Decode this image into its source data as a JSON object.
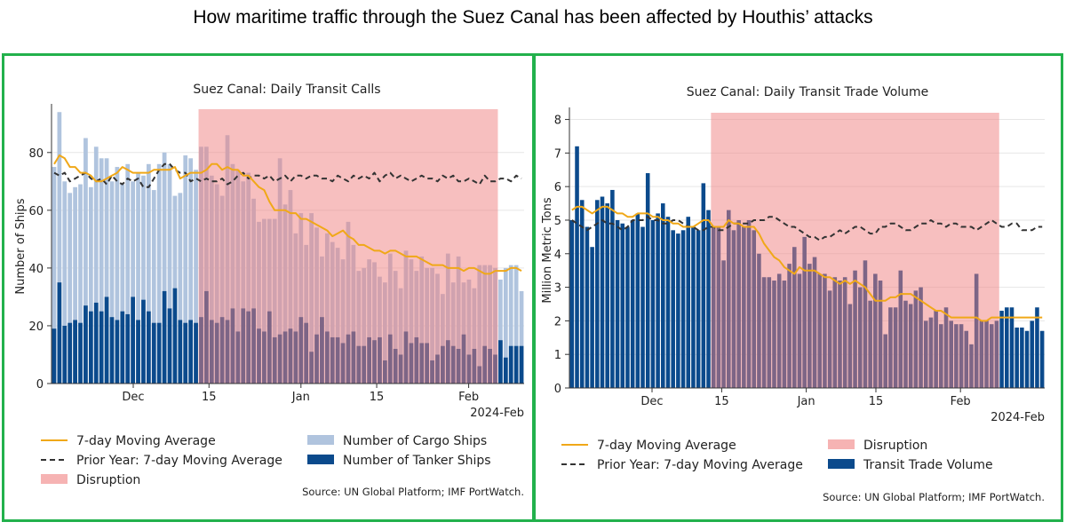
{
  "title": "How maritime traffic through the Suez Canal has been affected by Houthis’ attacks",
  "colors": {
    "cargo": "#b0c4de",
    "tanker": "#0b4a8c",
    "moving_avg": "#f0a818",
    "prior_year": "#333333",
    "disruption": "#f08080",
    "frame": "#22b14c"
  },
  "chart_data": [
    {
      "type": "bar",
      "title": "Suez Canal: Daily Transit Calls",
      "ylabel": "Number of Ships",
      "xlabel": "",
      "ylim": [
        0,
        95
      ],
      "yticks": [
        0,
        20,
        40,
        60,
        80
      ],
      "xticks": [
        {
          "label": "Dec",
          "day": 0
        },
        {
          "label": "15",
          "day": 14
        },
        {
          "label": "Jan",
          "day": 31
        },
        {
          "label": "15",
          "day": 45
        },
        {
          "label": "Feb",
          "day": 62
        }
      ],
      "x_suffix": "2024-Feb",
      "x_start": "2023-11-18",
      "disruption": {
        "start": "2023-12-16",
        "end": "2024-02-11"
      },
      "grid": true,
      "legend_position": "bottom",
      "legend": [
        {
          "label": "7-day Moving Average",
          "kind": "line",
          "color": "#f0a818"
        },
        {
          "label": "Number of Cargo Ships",
          "kind": "patch",
          "color": "#b0c4de"
        },
        {
          "label": "Prior Year: 7-day Moving Average",
          "kind": "dashed",
          "color": "#333333"
        },
        {
          "label": "Number of Tanker Ships",
          "kind": "patch",
          "color": "#0b4a8c"
        },
        {
          "label": "Disruption",
          "kind": "patch",
          "color": "#f08080"
        }
      ],
      "source": "Source: UN Global Platform; IMF PortWatch.",
      "series": [
        {
          "name": "Number of Cargo Ships",
          "values": [
            75,
            94,
            70,
            66,
            68,
            69,
            85,
            68,
            82,
            78,
            78,
            70,
            75,
            69,
            76,
            70,
            73,
            72,
            76,
            67,
            76,
            80,
            76,
            65,
            66,
            79,
            78,
            74,
            82,
            82,
            72,
            69,
            65,
            86,
            76,
            74,
            70,
            73,
            64,
            56,
            57,
            57,
            57,
            78,
            62,
            67,
            52,
            59,
            48,
            59,
            54,
            44,
            52,
            49,
            47,
            43,
            56,
            48,
            39,
            40,
            43,
            42,
            37,
            35,
            45,
            39,
            33,
            46,
            43,
            39,
            44,
            40,
            40,
            38,
            31,
            45,
            35,
            44,
            35,
            36,
            33,
            41,
            41,
            41,
            40,
            36,
            40,
            41,
            41,
            32
          ]
        },
        {
          "name": "Number of Tanker Ships",
          "values": [
            19,
            35,
            20,
            21,
            22,
            21,
            27,
            25,
            28,
            25,
            30,
            23,
            22,
            25,
            24,
            30,
            22,
            29,
            25,
            21,
            21,
            32,
            26,
            33,
            22,
            21,
            22,
            21,
            23,
            32,
            22,
            21,
            23,
            22,
            26,
            18,
            26,
            25,
            26,
            19,
            18,
            25,
            16,
            17,
            18,
            19,
            18,
            23,
            21,
            11,
            17,
            23,
            18,
            16,
            16,
            14,
            17,
            18,
            13,
            13,
            16,
            15,
            16,
            8,
            17,
            12,
            10,
            18,
            14,
            16,
            14,
            14,
            8,
            10,
            13,
            15,
            13,
            12,
            17,
            10,
            12,
            6,
            13,
            12,
            10,
            15,
            9,
            13,
            13,
            13
          ]
        },
        {
          "name": "7-day Moving Average",
          "values": [
            76,
            79,
            78,
            75,
            75,
            73,
            73,
            72,
            70,
            70,
            71,
            72,
            73,
            75,
            74,
            73,
            73,
            73,
            73,
            74,
            74,
            74,
            74,
            75,
            71,
            72,
            73,
            73,
            73,
            74,
            76,
            76,
            74,
            75,
            74,
            74,
            72,
            72,
            70,
            68,
            67,
            63,
            60,
            60,
            60,
            59,
            59,
            57,
            57,
            56,
            55,
            54,
            53,
            51,
            52,
            53,
            51,
            50,
            48,
            48,
            47,
            46,
            46,
            45,
            46,
            46,
            45,
            44,
            44,
            44,
            43,
            42,
            41,
            41,
            41,
            40,
            40,
            40,
            39,
            40,
            40,
            39,
            38,
            38,
            39,
            39,
            39,
            40,
            40,
            39
          ]
        },
        {
          "name": "Prior Year: 7-day Moving Average",
          "values": [
            73,
            72,
            73,
            70,
            71,
            72,
            73,
            71,
            70,
            71,
            69,
            72,
            70,
            69,
            71,
            70,
            71,
            68,
            68,
            71,
            74,
            76,
            76,
            74,
            73,
            73,
            70,
            71,
            70,
            71,
            70,
            70,
            71,
            69,
            70,
            72,
            73,
            71,
            72,
            72,
            71,
            72,
            70,
            71,
            72,
            70,
            72,
            72,
            71,
            72,
            72,
            71,
            71,
            70,
            72,
            71,
            70,
            72,
            71,
            72,
            71,
            73,
            70,
            72,
            73,
            71,
            72,
            71,
            70,
            71,
            72,
            71,
            71,
            70,
            72,
            71,
            72,
            70,
            70,
            71,
            70,
            69,
            72,
            70,
            70,
            71,
            71,
            70,
            72,
            71
          ]
        }
      ]
    },
    {
      "type": "bar",
      "title": "Suez Canal: Daily Transit Trade Volume",
      "ylabel": "Million Metric Tons",
      "xlabel": "",
      "ylim": [
        0,
        8.2
      ],
      "yticks": [
        0,
        1,
        2,
        3,
        4,
        5,
        6,
        7,
        8
      ],
      "xticks": [
        {
          "label": "Dec",
          "day": 0
        },
        {
          "label": "15",
          "day": 14
        },
        {
          "label": "Jan",
          "day": 31
        },
        {
          "label": "15",
          "day": 45
        },
        {
          "label": "Feb",
          "day": 62
        }
      ],
      "x_suffix": "2024-Feb",
      "x_start": "2023-11-18",
      "disruption": {
        "start": "2023-12-16",
        "end": "2024-02-11"
      },
      "grid": true,
      "legend_position": "bottom",
      "legend": [
        {
          "label": "7-day Moving Average",
          "kind": "line",
          "color": "#f0a818"
        },
        {
          "label": "Disruption",
          "kind": "patch",
          "color": "#f08080"
        },
        {
          "label": "Prior Year: 7-day Moving Average",
          "kind": "dashed",
          "color": "#333333"
        },
        {
          "label": "Transit Trade Volume",
          "kind": "patch",
          "color": "#0b4a8c"
        }
      ],
      "source": "Source: UN Global Platform; IMF PortWatch.",
      "series": [
        {
          "name": "Transit Trade Volume",
          "values": [
            5.0,
            7.2,
            5.6,
            4.8,
            4.2,
            5.6,
            5.7,
            5.5,
            5.9,
            5.0,
            4.9,
            4.8,
            5.0,
            5.2,
            4.8,
            6.4,
            5.0,
            5.2,
            5.5,
            5.1,
            4.7,
            4.6,
            4.7,
            5.1,
            4.8,
            4.7,
            6.1,
            5.3,
            4.8,
            4.8,
            3.8,
            5.3,
            4.7,
            5.0,
            4.8,
            5.0,
            4.7,
            4.0,
            3.3,
            3.3,
            3.2,
            3.4,
            3.2,
            3.7,
            4.2,
            3.4,
            4.5,
            3.7,
            3.9,
            3.4,
            3.4,
            2.9,
            3.3,
            3.2,
            3.3,
            2.5,
            3.5,
            3.0,
            3.8,
            2.6,
            3.4,
            3.2,
            1.6,
            2.4,
            2.4,
            3.5,
            2.6,
            2.5,
            2.9,
            3.0,
            2.0,
            2.1,
            2.3,
            1.9,
            2.4,
            2.0,
            1.9,
            1.9,
            1.7,
            1.3,
            3.4,
            2.0,
            2.0,
            1.9,
            2.0,
            2.3,
            2.4,
            2.4,
            1.8,
            1.8,
            1.7,
            2.0,
            2.4,
            1.7
          ]
        },
        {
          "name": "7-day Moving Average",
          "values": [
            5.3,
            5.4,
            5.4,
            5.3,
            5.2,
            5.3,
            5.4,
            5.4,
            5.3,
            5.2,
            5.2,
            5.1,
            5.1,
            5.2,
            5.2,
            5.2,
            5.1,
            5.1,
            5.0,
            5.0,
            4.9,
            4.9,
            4.8,
            4.8,
            4.8,
            4.9,
            5.0,
            5.0,
            4.8,
            4.8,
            4.8,
            5.0,
            4.9,
            4.9,
            4.8,
            4.8,
            4.8,
            4.6,
            4.3,
            4.1,
            3.9,
            3.8,
            3.6,
            3.5,
            3.4,
            3.6,
            3.5,
            3.5,
            3.5,
            3.4,
            3.3,
            3.3,
            3.2,
            3.1,
            3.2,
            3.1,
            3.2,
            3.1,
            3.0,
            2.8,
            2.6,
            2.6,
            2.6,
            2.7,
            2.7,
            2.8,
            2.8,
            2.8,
            2.7,
            2.6,
            2.5,
            2.4,
            2.3,
            2.3,
            2.2,
            2.1,
            2.1,
            2.1,
            2.1,
            2.1,
            2.1,
            2.0,
            2.0,
            2.1,
            2.1,
            2.1,
            2.1,
            2.1,
            2.1,
            2.1,
            2.1,
            2.1,
            2.1,
            2.1
          ]
        },
        {
          "name": "Prior Year: 7-day Moving Average",
          "values": [
            5.0,
            4.9,
            4.8,
            4.7,
            4.8,
            4.9,
            5.0,
            4.9,
            4.9,
            4.8,
            4.7,
            4.8,
            5.0,
            5.0,
            5.0,
            5.1,
            5.0,
            5.0,
            4.9,
            4.9,
            5.0,
            5.0,
            4.9,
            4.8,
            4.8,
            4.7,
            4.7,
            4.8,
            4.8,
            4.7,
            4.7,
            4.8,
            4.9,
            4.9,
            4.9,
            4.9,
            5.0,
            5.0,
            5.0,
            5.1,
            5.1,
            5.0,
            4.9,
            4.8,
            4.8,
            4.7,
            4.6,
            4.5,
            4.5,
            4.4,
            4.5,
            4.5,
            4.6,
            4.7,
            4.6,
            4.7,
            4.8,
            4.8,
            4.7,
            4.6,
            4.6,
            4.8,
            4.8,
            4.9,
            4.9,
            4.8,
            4.7,
            4.7,
            4.8,
            4.9,
            4.9,
            5.0,
            4.9,
            4.9,
            4.8,
            4.9,
            4.9,
            4.8,
            4.8,
            4.8,
            4.7,
            4.8,
            4.9,
            5.0,
            4.9,
            4.8,
            4.8,
            4.9,
            4.9,
            4.7,
            4.7,
            4.7,
            4.8,
            4.8
          ]
        }
      ]
    }
  ]
}
